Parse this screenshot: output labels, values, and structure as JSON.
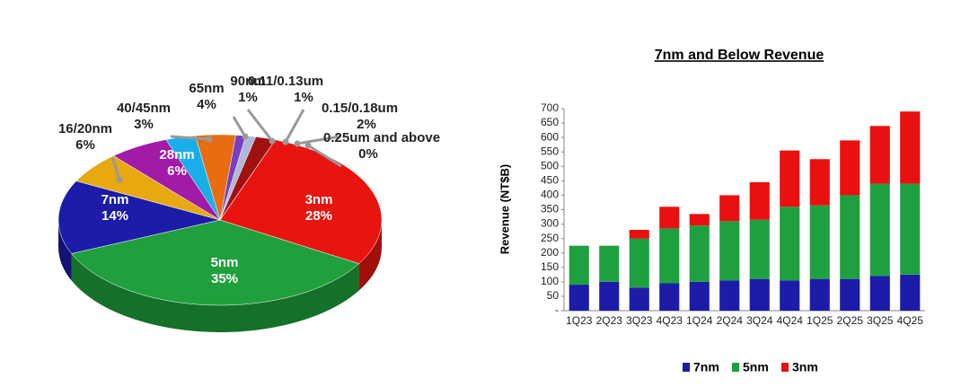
{
  "chart_data": [
    {
      "type": "pie",
      "categories": [
        "3nm",
        "5nm",
        "7nm",
        "16/20nm",
        "28nm",
        "40/45nm",
        "65nm",
        "90nm",
        "0.11/0.13um",
        "0.15/0.18um",
        "0.25um and above"
      ],
      "values": [
        28,
        35,
        14,
        6,
        6,
        3,
        4,
        1,
        1,
        2,
        0
      ],
      "value_labels": [
        "28%",
        "35%",
        "14%",
        "6%",
        "6%",
        "3%",
        "4%",
        "1%",
        "1%",
        "2%",
        "0%"
      ],
      "colors": [
        "#e8140f",
        "#1fa03c",
        "#1c1ca8",
        "#e8a910",
        "#a21aa8",
        "#19aee8",
        "#e86c10",
        "#7a3fc0",
        "#b0b8d8",
        "#a01010",
        "#808080"
      ]
    },
    {
      "type": "bar",
      "stacked": true,
      "title": "7nm and Below Revenue",
      "y_label": "Revenue (NT$B)",
      "categories": [
        "1Q23",
        "2Q23",
        "3Q23",
        "4Q23",
        "1Q24",
        "2Q24",
        "3Q24",
        "4Q24",
        "1Q25",
        "2Q25",
        "3Q25",
        "4Q25"
      ],
      "series": [
        {
          "name": "7nm",
          "color": "#1c1ca8",
          "values": [
            90,
            100,
            80,
            95,
            100,
            105,
            110,
            105,
            110,
            110,
            120,
            125
          ]
        },
        {
          "name": "5nm",
          "color": "#1fa040",
          "values": [
            135,
            125,
            170,
            190,
            195,
            205,
            205,
            255,
            255,
            290,
            320,
            315
          ]
        },
        {
          "name": "3nm",
          "color": "#e81010",
          "values": [
            0,
            0,
            30,
            75,
            40,
            90,
            130,
            195,
            160,
            190,
            200,
            250
          ]
        }
      ],
      "ylim": [
        0,
        700
      ],
      "yticks": [
        {
          "value": 0,
          "label": "-"
        },
        50,
        100,
        150,
        200,
        250,
        300,
        350,
        400,
        450,
        500,
        550,
        600,
        650,
        700
      ]
    }
  ]
}
